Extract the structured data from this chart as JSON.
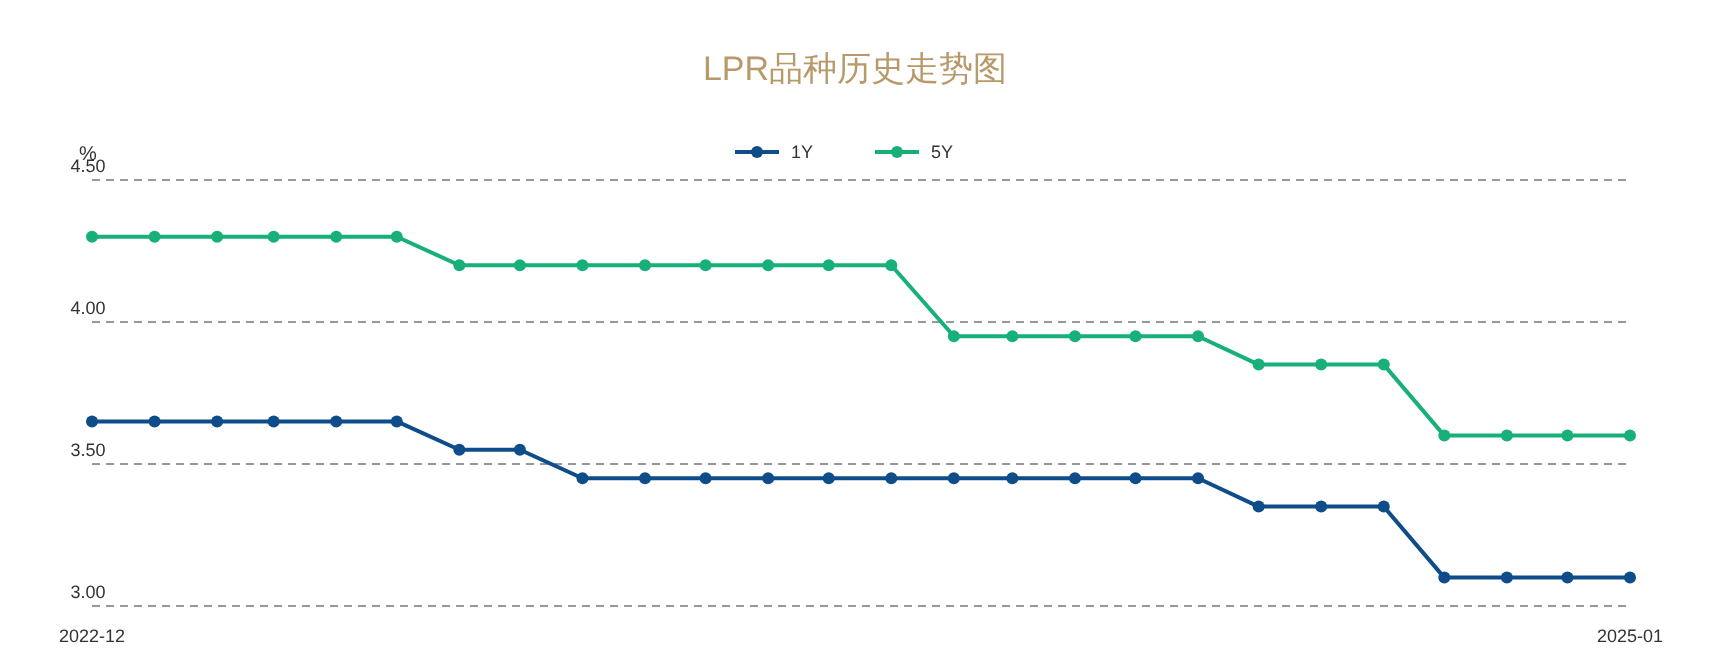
{
  "chart_data": {
    "type": "line",
    "title": "LPR品种历史走势图",
    "ylabel": "%",
    "x": [
      "2022-12",
      "2023-01",
      "2023-02",
      "2023-03",
      "2023-04",
      "2023-05",
      "2023-06",
      "2023-07",
      "2023-08",
      "2023-09",
      "2023-10",
      "2023-11",
      "2023-12",
      "2024-01",
      "2024-02",
      "2024-03",
      "2024-04",
      "2024-05",
      "2024-06",
      "2024-07",
      "2024-08",
      "2024-09",
      "2024-10",
      "2024-11",
      "2024-12",
      "2025-01"
    ],
    "series": [
      {
        "name": "1Y",
        "color": "#0f4c8a",
        "values": [
          3.65,
          3.65,
          3.65,
          3.65,
          3.65,
          3.65,
          3.55,
          3.55,
          3.45,
          3.45,
          3.45,
          3.45,
          3.45,
          3.45,
          3.45,
          3.45,
          3.45,
          3.45,
          3.45,
          3.35,
          3.35,
          3.35,
          3.1,
          3.1,
          3.1,
          3.1
        ]
      },
      {
        "name": "5Y",
        "color": "#17b079",
        "values": [
          4.3,
          4.3,
          4.3,
          4.3,
          4.3,
          4.3,
          4.2,
          4.2,
          4.2,
          4.2,
          4.2,
          4.2,
          4.2,
          4.2,
          3.95,
          3.95,
          3.95,
          3.95,
          3.95,
          3.85,
          3.85,
          3.85,
          3.6,
          3.6,
          3.6,
          3.6
        ]
      }
    ],
    "xlim": [
      "2022-12",
      "2025-01"
    ],
    "xticks": [
      "2022-12",
      "2025-01"
    ],
    "ylim": [
      3.0,
      4.5
    ],
    "yticks": [
      {
        "value": 3.0,
        "label": "3.00"
      },
      {
        "value": 3.5,
        "label": "3.50"
      },
      {
        "value": 4.0,
        "label": "4.00"
      },
      {
        "value": 4.5,
        "label": "4.50"
      }
    ],
    "grid": "y",
    "legend": "top",
    "marker": "circle",
    "line_style": "solid"
  }
}
